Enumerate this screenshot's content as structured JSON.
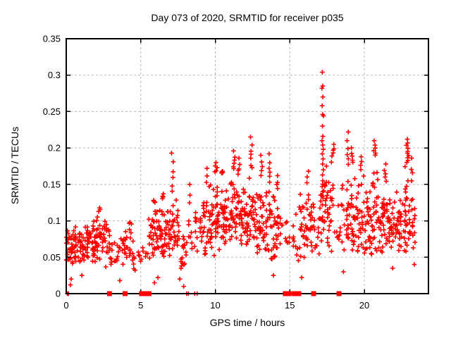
{
  "chart_data": {
    "type": "scatter",
    "title": "Day 073 of 2020, SRMTID for receiver p035",
    "xlabel": "GPS time / hours",
    "ylabel": "SRMTID / TECUs",
    "xlim": [
      0,
      24.3
    ],
    "ylim": [
      0,
      0.35
    ],
    "xticks": [
      0,
      5,
      10,
      15,
      20
    ],
    "xtick_labels": [
      "0",
      "5",
      "10",
      "15",
      "20"
    ],
    "yticks": [
      0,
      0.05,
      0.1,
      0.15,
      0.2,
      0.25,
      0.3,
      0.35
    ],
    "ytick_labels": [
      "0",
      "0.05",
      "0.1",
      "0.15",
      "0.2",
      "0.25",
      "0.3",
      "0.35"
    ],
    "grid": {
      "dashed": true,
      "color": "#b9b9b9"
    },
    "axis_color": "#000000",
    "background": "#ffffff",
    "marker": {
      "shape": "plus",
      "color": "#ff0000",
      "size": 7,
      "name": "data-point-plus-marker"
    },
    "gap_marker": {
      "shape": "filled-square",
      "color": "#ff0000",
      "size": 7,
      "name": "zero-line-square-marker"
    },
    "seed": 20200073,
    "cloud_bins": [
      [
        0.0,
        30,
        0.03,
        0.115
      ],
      [
        0.5,
        30,
        0.035,
        0.1
      ],
      [
        1.0,
        28,
        0.04,
        0.095
      ],
      [
        1.5,
        28,
        0.04,
        0.105
      ],
      [
        2.0,
        26,
        0.045,
        0.112
      ],
      [
        2.5,
        20,
        0.035,
        0.118
      ],
      [
        3.0,
        12,
        0.03,
        0.08
      ],
      [
        3.5,
        16,
        0.03,
        0.105
      ],
      [
        4.0,
        14,
        0.035,
        0.095
      ],
      [
        4.5,
        10,
        0.03,
        0.075
      ],
      [
        5.0,
        6,
        0.04,
        0.07
      ],
      [
        5.5,
        26,
        0.04,
        0.125
      ],
      [
        6.0,
        28,
        0.05,
        0.125
      ],
      [
        6.5,
        28,
        0.045,
        0.13
      ],
      [
        7.0,
        26,
        0.05,
        0.135
      ],
      [
        7.5,
        18,
        0.03,
        0.1
      ],
      [
        8.0,
        10,
        0.03,
        0.12
      ],
      [
        8.5,
        12,
        0.04,
        0.13
      ],
      [
        9.0,
        24,
        0.05,
        0.15
      ],
      [
        9.5,
        26,
        0.05,
        0.158
      ],
      [
        10.0,
        30,
        0.06,
        0.165
      ],
      [
        10.5,
        30,
        0.06,
        0.15
      ],
      [
        11.0,
        30,
        0.06,
        0.168
      ],
      [
        11.5,
        30,
        0.06,
        0.16
      ],
      [
        12.0,
        30,
        0.06,
        0.168
      ],
      [
        12.5,
        28,
        0.05,
        0.15
      ],
      [
        13.0,
        26,
        0.05,
        0.158
      ],
      [
        13.5,
        26,
        0.04,
        0.15
      ],
      [
        14.0,
        20,
        0.04,
        0.14
      ],
      [
        14.5,
        8,
        0.05,
        0.11
      ],
      [
        15.0,
        8,
        0.04,
        0.12
      ],
      [
        15.5,
        20,
        0.04,
        0.148
      ],
      [
        16.0,
        24,
        0.05,
        0.15
      ],
      [
        16.5,
        14,
        0.05,
        0.14
      ],
      [
        17.0,
        26,
        0.06,
        0.2
      ],
      [
        17.5,
        24,
        0.05,
        0.188
      ],
      [
        18.0,
        10,
        0.05,
        0.13
      ],
      [
        18.5,
        24,
        0.05,
        0.17
      ],
      [
        19.0,
        26,
        0.05,
        0.178
      ],
      [
        19.5,
        26,
        0.05,
        0.168
      ],
      [
        20.0,
        28,
        0.05,
        0.16
      ],
      [
        20.5,
        28,
        0.05,
        0.188
      ],
      [
        21.0,
        28,
        0.05,
        0.15
      ],
      [
        21.5,
        28,
        0.05,
        0.145
      ],
      [
        22.0,
        28,
        0.05,
        0.15
      ],
      [
        22.5,
        26,
        0.05,
        0.178
      ],
      [
        23.0,
        20,
        0.06,
        0.15
      ]
    ],
    "spike_columns": [
      [
        2.2,
        0.118,
        3
      ],
      [
        4.3,
        0.098,
        3
      ],
      [
        5.9,
        0.128,
        4
      ],
      [
        6.5,
        0.137,
        4
      ],
      [
        7.1,
        0.193,
        6
      ],
      [
        8.3,
        0.15,
        3
      ],
      [
        9.45,
        0.172,
        3
      ],
      [
        10.05,
        0.18,
        5
      ],
      [
        10.45,
        0.168,
        4
      ],
      [
        11.25,
        0.196,
        6
      ],
      [
        11.6,
        0.186,
        5
      ],
      [
        12.4,
        0.215,
        7
      ],
      [
        13.1,
        0.19,
        5
      ],
      [
        13.6,
        0.192,
        6
      ],
      [
        14.2,
        0.162,
        4
      ],
      [
        16.2,
        0.168,
        3
      ],
      [
        17.9,
        0.205,
        5
      ],
      [
        18.9,
        0.222,
        6
      ],
      [
        19.15,
        0.2,
        5
      ],
      [
        19.8,
        0.188,
        4
      ],
      [
        20.7,
        0.21,
        6
      ],
      [
        21.4,
        0.178,
        5
      ],
      [
        22.9,
        0.212,
        10
      ],
      [
        23.2,
        0.186,
        4
      ]
    ],
    "extra_points": [
      [
        17.18,
        0.304
      ],
      [
        17.21,
        0.285
      ],
      [
        17.15,
        0.282
      ],
      [
        17.22,
        0.27
      ],
      [
        17.17,
        0.258
      ],
      [
        17.2,
        0.246
      ],
      [
        17.26,
        0.244
      ],
      [
        17.19,
        0.23
      ],
      [
        17.22,
        0.216
      ],
      [
        17.16,
        0.21
      ],
      [
        17.21,
        0.204
      ],
      [
        17.24,
        0.198
      ],
      [
        17.18,
        0.192
      ],
      [
        17.23,
        0.185
      ],
      [
        17.2,
        0.178
      ],
      [
        17.25,
        0.17
      ],
      [
        17.19,
        0.163
      ],
      [
        17.22,
        0.155
      ],
      [
        17.17,
        0.147
      ],
      [
        17.21,
        0.14
      ],
      [
        17.23,
        0.131
      ],
      [
        17.18,
        0.122
      ],
      [
        0.28,
        0.012
      ],
      [
        0.33,
        0.02
      ],
      [
        1.05,
        0.025
      ],
      [
        3.6,
        0.018
      ],
      [
        5.92,
        0.015
      ],
      [
        6.15,
        0.022
      ],
      [
        7.62,
        0.02
      ],
      [
        7.88,
        0.01
      ],
      [
        13.9,
        0.025
      ],
      [
        15.8,
        0.022
      ],
      [
        18.6,
        0.03
      ],
      [
        21.9,
        0.035
      ],
      [
        23.35,
        0.04
      ]
    ],
    "zero_plus_hours": [
      0.07,
      0.15,
      8.08,
      8.2,
      8.62,
      8.78
    ],
    "zero_square_hours": [
      2.9,
      3.95,
      5.05,
      5.25,
      5.55,
      14.7,
      14.95,
      15.3,
      15.6,
      16.6,
      18.3
    ]
  }
}
